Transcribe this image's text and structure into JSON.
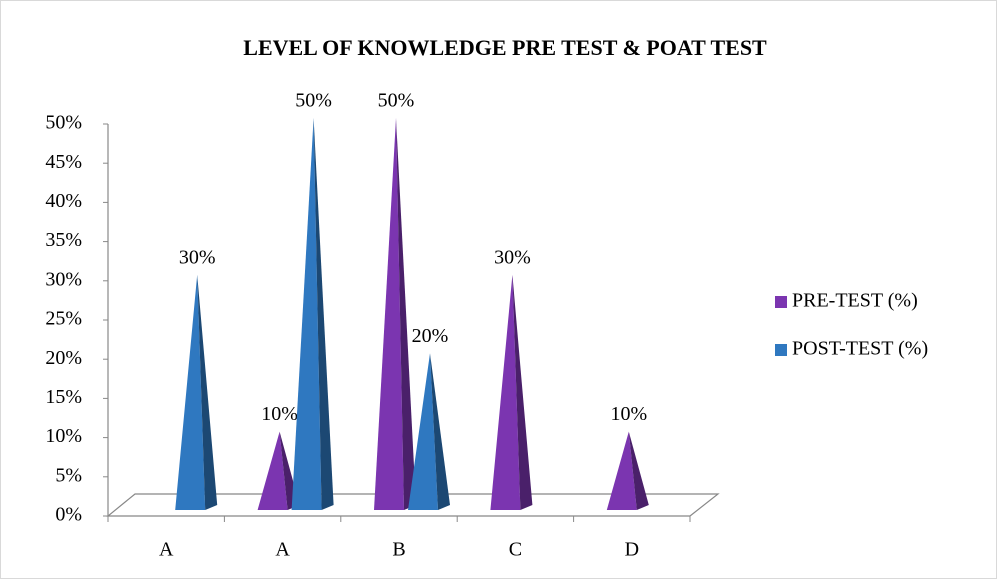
{
  "chart_data": {
    "type": "bar",
    "title": "LEVEL OF KNOWLEDGE PRE TEST & POAT TEST",
    "categories": [
      "A",
      "A",
      "B",
      "C",
      "D"
    ],
    "series": [
      {
        "name": "PRE-TEST (%)",
        "color": "#7b35b0",
        "values": [
          null,
          10,
          50,
          30,
          10
        ],
        "value_labels": [
          null,
          "10%",
          "50%",
          "30%",
          "10%"
        ]
      },
      {
        "name": "POST-TEST (%)",
        "color": "#2f78c0",
        "values": [
          30,
          50,
          20,
          null,
          null
        ],
        "value_labels": [
          "30%",
          "50%",
          "20%",
          null,
          null
        ]
      }
    ],
    "ylim": [
      0,
      50
    ],
    "yticks": [
      {
        "value": 0,
        "label": "0%"
      },
      {
        "value": 5,
        "label": "5%"
      },
      {
        "value": 10,
        "label": "10%"
      },
      {
        "value": 15,
        "label": "15%"
      },
      {
        "value": 20,
        "label": "20%"
      },
      {
        "value": 25,
        "label": "25%"
      },
      {
        "value": 30,
        "label": "30%"
      },
      {
        "value": 35,
        "label": "35%"
      },
      {
        "value": 40,
        "label": "40%"
      },
      {
        "value": 45,
        "label": "45%"
      },
      {
        "value": 50,
        "label": "50%"
      }
    ],
    "legend": "right"
  }
}
